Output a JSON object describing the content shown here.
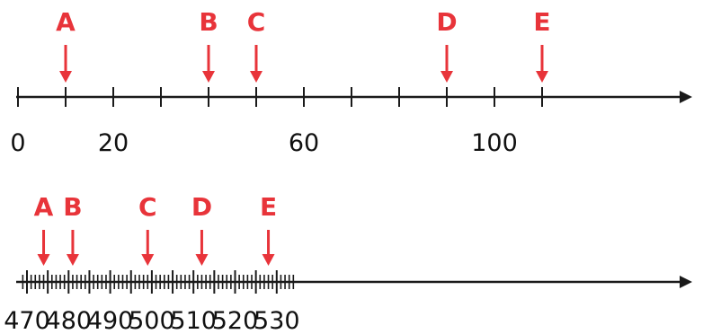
{
  "colors": {
    "axis": "#1a1a1a",
    "marker": "#e8343a"
  },
  "number_lines": [
    {
      "id": "line-1",
      "range": [
        0,
        120
      ],
      "tick_values": [
        0,
        10,
        20,
        30,
        40,
        50,
        60,
        70,
        80,
        90,
        100,
        110
      ],
      "labels": [
        {
          "value": 0,
          "text": "0"
        },
        {
          "value": 20,
          "text": "20"
        },
        {
          "value": 60,
          "text": "60"
        },
        {
          "value": 100,
          "text": "100"
        }
      ],
      "points": [
        {
          "letter": "A",
          "value": 10
        },
        {
          "letter": "B",
          "value": 40
        },
        {
          "letter": "C",
          "value": 50
        },
        {
          "letter": "D",
          "value": 90
        },
        {
          "letter": "E",
          "value": 110
        }
      ]
    },
    {
      "id": "line-2",
      "range": [
        469,
        534
      ],
      "minor_step": 1,
      "major_step": 5,
      "labels": [
        {
          "value": 470,
          "text": "470"
        },
        {
          "value": 480,
          "text": "480"
        },
        {
          "value": 490,
          "text": "490"
        },
        {
          "value": 500,
          "text": "500"
        },
        {
          "value": 510,
          "text": "510"
        },
        {
          "value": 520,
          "text": "520"
        },
        {
          "value": 530,
          "text": "530"
        }
      ],
      "points": [
        {
          "letter": "A",
          "value": 474
        },
        {
          "letter": "B",
          "value": 481
        },
        {
          "letter": "C",
          "value": 499
        },
        {
          "letter": "D",
          "value": 512
        },
        {
          "letter": "E",
          "value": 528
        }
      ]
    }
  ]
}
